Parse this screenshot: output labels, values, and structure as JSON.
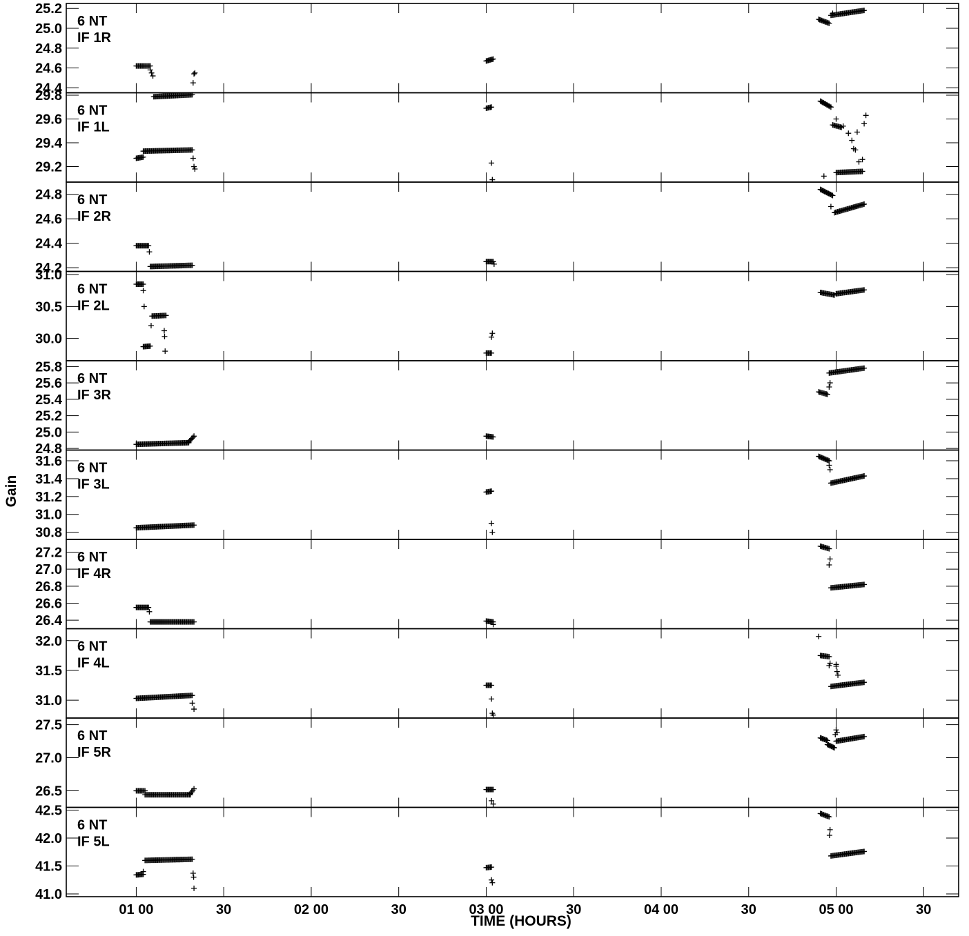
{
  "chart_data": {
    "type": "scatter",
    "xlabel": "TIME (HOURS)",
    "ylabel": "Gain",
    "xlim": [
      0.6,
      5.7
    ],
    "marker": "plus",
    "x_ticks": [
      {
        "value": 1.0,
        "label": "01 00"
      },
      {
        "value": 1.5,
        "label": "30"
      },
      {
        "value": 2.0,
        "label": "02 00"
      },
      {
        "value": 2.5,
        "label": "30"
      },
      {
        "value": 3.0,
        "label": "03 00"
      },
      {
        "value": 3.5,
        "label": "30"
      },
      {
        "value": 4.0,
        "label": "04 00"
      },
      {
        "value": 4.5,
        "label": "30"
      },
      {
        "value": 5.0,
        "label": "05 00"
      },
      {
        "value": 5.5,
        "label": "30"
      }
    ],
    "panels": [
      {
        "antenna": "6 NT",
        "if": "IF 1R",
        "ylim": [
          24.35,
          25.25
        ],
        "yticks": [
          "24.4",
          "24.6",
          "24.8",
          "25.0",
          "25.2"
        ],
        "segments": [
          {
            "t0": 1.0,
            "t1": 1.08,
            "y0": 24.62,
            "y1": 24.62
          },
          {
            "t0": 1.08,
            "t1": 1.095,
            "y0": 24.58,
            "y1": 24.52
          },
          {
            "t0": 1.1,
            "t1": 1.32,
            "y0": 24.31,
            "y1": 24.33
          },
          {
            "t0": 3.0,
            "t1": 3.04,
            "y0": 24.67,
            "y1": 24.69
          },
          {
            "t0": 4.9,
            "t1": 4.96,
            "y0": 25.09,
            "y1": 25.05
          },
          {
            "t0": 4.97,
            "t1": 5.16,
            "y0": 25.13,
            "y1": 25.18
          }
        ],
        "points": [
          [
            1.325,
            24.45
          ],
          [
            1.33,
            24.54
          ],
          [
            1.335,
            24.55
          ],
          [
            4.98,
            25.15
          ]
        ]
      },
      {
        "antenna": "6 NT",
        "if": "IF 1L",
        "ylim": [
          29.07,
          29.82
        ],
        "yticks": [
          "29.2",
          "29.4",
          "29.6",
          "29.8"
        ],
        "segments": [
          {
            "t0": 1.0,
            "t1": 1.04,
            "y0": 29.27,
            "y1": 29.28
          },
          {
            "t0": 1.04,
            "t1": 1.32,
            "y0": 29.33,
            "y1": 29.34
          },
          {
            "t0": 3.0,
            "t1": 3.03,
            "y0": 29.69,
            "y1": 29.7
          },
          {
            "t0": 4.91,
            "t1": 4.97,
            "y0": 29.75,
            "y1": 29.7
          },
          {
            "t0": 4.98,
            "t1": 5.03,
            "y0": 29.55,
            "y1": 29.53
          },
          {
            "t0": 5.0,
            "t1": 5.15,
            "y0": 29.15,
            "y1": 29.16
          }
        ],
        "points": [
          [
            1.325,
            29.27
          ],
          [
            1.33,
            29.2
          ],
          [
            1.335,
            29.18
          ],
          [
            3.03,
            29.23
          ],
          [
            3.035,
            29.09
          ],
          [
            4.93,
            29.12
          ],
          [
            5.0,
            29.6
          ],
          [
            5.04,
            29.54
          ],
          [
            5.07,
            29.48
          ],
          [
            5.09,
            29.42
          ],
          [
            5.11,
            29.34
          ],
          [
            5.13,
            29.24
          ],
          [
            5.16,
            29.56
          ],
          [
            5.17,
            29.63
          ],
          [
            5.1,
            29.35
          ],
          [
            5.15,
            29.26
          ],
          [
            5.12,
            29.49
          ]
        ]
      },
      {
        "antenna": "6 NT",
        "if": "IF 2R",
        "ylim": [
          24.17,
          24.9
        ],
        "yticks": [
          "24.2",
          "24.4",
          "24.6",
          "24.8"
        ],
        "segments": [
          {
            "t0": 1.0,
            "t1": 1.07,
            "y0": 24.38,
            "y1": 24.38
          },
          {
            "t0": 1.08,
            "t1": 1.32,
            "y0": 24.21,
            "y1": 24.22
          },
          {
            "t0": 3.0,
            "t1": 3.04,
            "y0": 24.25,
            "y1": 24.25
          },
          {
            "t0": 4.91,
            "t1": 4.98,
            "y0": 24.84,
            "y1": 24.79
          },
          {
            "t0": 4.99,
            "t1": 5.16,
            "y0": 24.65,
            "y1": 24.72
          }
        ],
        "points": [
          [
            1.075,
            24.33
          ],
          [
            3.045,
            24.23
          ],
          [
            4.97,
            24.7
          ]
        ]
      },
      {
        "antenna": "6 NT",
        "if": "IF 2L",
        "ylim": [
          29.65,
          31.05
        ],
        "yticks": [
          "30.0",
          "30.5",
          "31.0"
        ],
        "segments": [
          {
            "t0": 1.0,
            "t1": 1.04,
            "y0": 30.85,
            "y1": 30.85
          },
          {
            "t0": 1.04,
            "t1": 1.08,
            "y0": 29.87,
            "y1": 29.88
          },
          {
            "t0": 1.09,
            "t1": 1.17,
            "y0": 30.35,
            "y1": 30.36
          },
          {
            "t0": 3.0,
            "t1": 3.03,
            "y0": 29.77,
            "y1": 29.77
          },
          {
            "t0": 4.91,
            "t1": 4.99,
            "y0": 30.72,
            "y1": 30.68
          },
          {
            "t0": 5.0,
            "t1": 5.16,
            "y0": 30.7,
            "y1": 30.76
          }
        ],
        "points": [
          [
            1.04,
            30.75
          ],
          [
            1.045,
            30.5
          ],
          [
            1.085,
            30.2
          ],
          [
            1.16,
            30.12
          ],
          [
            1.162,
            30.03
          ],
          [
            1.165,
            29.8
          ],
          [
            3.03,
            30.02
          ],
          [
            3.035,
            30.08
          ],
          [
            5.0,
            30.7
          ]
        ]
      },
      {
        "antenna": "6 NT",
        "if": "IF 3R",
        "ylim": [
          24.78,
          25.87
        ],
        "yticks": [
          "24.8",
          "25.0",
          "25.2",
          "25.4",
          "25.6",
          "25.8"
        ],
        "segments": [
          {
            "t0": 1.0,
            "t1": 1.3,
            "y0": 24.85,
            "y1": 24.87
          },
          {
            "t0": 1.3,
            "t1": 1.33,
            "y0": 24.88,
            "y1": 24.95
          },
          {
            "t0": 3.0,
            "t1": 3.04,
            "y0": 24.95,
            "y1": 24.94
          },
          {
            "t0": 4.9,
            "t1": 4.95,
            "y0": 25.49,
            "y1": 25.46
          },
          {
            "t0": 4.96,
            "t1": 5.16,
            "y0": 25.72,
            "y1": 25.78
          }
        ],
        "points": [
          [
            4.96,
            25.55
          ],
          [
            4.965,
            25.6
          ]
        ]
      },
      {
        "antenna": "6 NT",
        "if": "IF 3L",
        "ylim": [
          30.72,
          31.72
        ],
        "yticks": [
          "30.8",
          "31.0",
          "31.2",
          "31.4",
          "31.6"
        ],
        "segments": [
          {
            "t0": 1.0,
            "t1": 1.33,
            "y0": 30.85,
            "y1": 30.88
          },
          {
            "t0": 3.0,
            "t1": 3.03,
            "y0": 31.25,
            "y1": 31.26
          },
          {
            "t0": 4.9,
            "t1": 4.96,
            "y0": 31.65,
            "y1": 31.6
          },
          {
            "t0": 4.97,
            "t1": 5.16,
            "y0": 31.35,
            "y1": 31.43
          }
        ],
        "points": [
          [
            4.965,
            31.5
          ],
          [
            4.96,
            31.55
          ],
          [
            3.03,
            30.9
          ],
          [
            3.035,
            30.8
          ]
        ]
      },
      {
        "antenna": "6 NT",
        "if": "IF 4R",
        "ylim": [
          26.3,
          27.35
        ],
        "yticks": [
          "26.4",
          "26.6",
          "26.8",
          "27.0",
          "27.2"
        ],
        "segments": [
          {
            "t0": 1.0,
            "t1": 1.07,
            "y0": 26.55,
            "y1": 26.55
          },
          {
            "t0": 1.08,
            "t1": 1.33,
            "y0": 26.38,
            "y1": 26.38
          },
          {
            "t0": 3.0,
            "t1": 3.04,
            "y0": 26.39,
            "y1": 26.38
          },
          {
            "t0": 4.91,
            "t1": 4.96,
            "y0": 27.27,
            "y1": 27.24
          },
          {
            "t0": 4.97,
            "t1": 5.16,
            "y0": 26.78,
            "y1": 26.82
          }
        ],
        "points": [
          [
            1.075,
            26.5
          ],
          [
            3.04,
            26.35
          ],
          [
            4.965,
            27.12
          ],
          [
            4.96,
            27.05
          ]
        ]
      },
      {
        "antenna": "6 NT",
        "if": "IF 4L",
        "ylim": [
          30.7,
          32.2
        ],
        "yticks": [
          "31.0",
          "31.5",
          "32.0"
        ],
        "segments": [
          {
            "t0": 1.0,
            "t1": 1.32,
            "y0": 31.03,
            "y1": 31.08
          },
          {
            "t0": 3.0,
            "t1": 3.03,
            "y0": 31.25,
            "y1": 31.25
          },
          {
            "t0": 4.91,
            "t1": 4.96,
            "y0": 31.75,
            "y1": 31.73
          },
          {
            "t0": 4.97,
            "t1": 5.16,
            "y0": 31.23,
            "y1": 31.3
          }
        ],
        "points": [
          [
            1.32,
            30.95
          ],
          [
            1.33,
            30.85
          ],
          [
            3.03,
            31.02
          ],
          [
            3.035,
            30.78
          ],
          [
            3.04,
            30.75
          ],
          [
            4.9,
            32.07
          ],
          [
            4.96,
            31.58
          ],
          [
            4.965,
            31.62
          ],
          [
            5.0,
            31.57
          ],
          [
            5.005,
            31.48
          ],
          [
            5.01,
            31.42
          ],
          [
            5.0,
            31.6
          ]
        ]
      },
      {
        "antenna": "6 NT",
        "if": "IF 5R",
        "ylim": [
          26.25,
          27.6
        ],
        "yticks": [
          "26.5",
          "27.0",
          "27.5"
        ],
        "segments": [
          {
            "t0": 1.0,
            "t1": 1.05,
            "y0": 26.5,
            "y1": 26.5
          },
          {
            "t0": 1.05,
            "t1": 1.31,
            "y0": 26.44,
            "y1": 26.44
          },
          {
            "t0": 1.31,
            "t1": 1.33,
            "y0": 26.46,
            "y1": 26.53
          },
          {
            "t0": 3.0,
            "t1": 3.04,
            "y0": 26.52,
            "y1": 26.52
          },
          {
            "t0": 4.91,
            "t1": 4.95,
            "y0": 27.3,
            "y1": 27.26
          },
          {
            "t0": 4.95,
            "t1": 4.99,
            "y0": 27.2,
            "y1": 27.15
          },
          {
            "t0": 5.0,
            "t1": 5.16,
            "y0": 27.25,
            "y1": 27.32
          }
        ],
        "points": [
          [
            3.03,
            26.35
          ],
          [
            3.04,
            26.3
          ],
          [
            5.0,
            27.42
          ],
          [
            5.005,
            27.38
          ],
          [
            4.995,
            27.35
          ]
        ]
      },
      {
        "antenna": "6 NT",
        "if": "IF 5L",
        "ylim": [
          40.95,
          42.55
        ],
        "yticks": [
          "41.0",
          "41.5",
          "42.0",
          "42.5"
        ],
        "segments": [
          {
            "t0": 1.0,
            "t1": 1.04,
            "y0": 41.34,
            "y1": 41.35
          },
          {
            "t0": 1.05,
            "t1": 1.32,
            "y0": 41.6,
            "y1": 41.62
          },
          {
            "t0": 3.0,
            "t1": 3.03,
            "y0": 41.47,
            "y1": 41.48
          },
          {
            "t0": 4.91,
            "t1": 4.96,
            "y0": 42.44,
            "y1": 42.38
          },
          {
            "t0": 4.97,
            "t1": 5.16,
            "y0": 41.68,
            "y1": 41.76
          }
        ],
        "points": [
          [
            1.04,
            41.4
          ],
          [
            1.325,
            41.37
          ],
          [
            1.328,
            41.3
          ],
          [
            1.33,
            41.1
          ],
          [
            3.03,
            41.25
          ],
          [
            3.035,
            41.2
          ],
          [
            4.965,
            42.15
          ],
          [
            4.962,
            42.05
          ]
        ]
      }
    ]
  }
}
